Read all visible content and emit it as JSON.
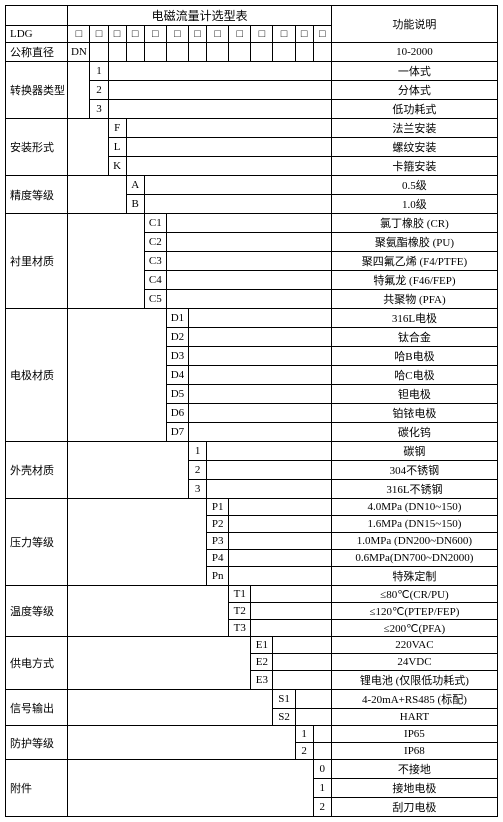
{
  "title": "电磁流量计选型表",
  "func_header": "功能说明",
  "rows": [
    {
      "label": "LDG",
      "code_col": 0,
      "code": "□",
      "desc": ""
    },
    {
      "label": "公称直径",
      "code_col": 1,
      "code": "DN",
      "desc": "10-2000"
    },
    {
      "label": "转换器类型",
      "rowspan": 3,
      "codes": [
        {
          "col": 2,
          "code": "1",
          "desc": "一体式"
        },
        {
          "col": 2,
          "code": "2",
          "desc": "分体式"
        },
        {
          "col": 2,
          "code": "3",
          "desc": "低功耗式"
        }
      ]
    },
    {
      "label": "安装形式",
      "rowspan": 3,
      "codes": [
        {
          "col": 3,
          "code": "F",
          "desc": "法兰安装"
        },
        {
          "col": 3,
          "code": "L",
          "desc": "螺纹安装"
        },
        {
          "col": 3,
          "code": "K",
          "desc": "卡箍安装"
        }
      ]
    },
    {
      "label": "精度等级",
      "rowspan": 2,
      "codes": [
        {
          "col": 4,
          "code": "A",
          "desc": "0.5级"
        },
        {
          "col": 4,
          "code": "B",
          "desc": "1.0级"
        }
      ]
    },
    {
      "label": "衬里材质",
      "rowspan": 5,
      "codes": [
        {
          "col": 5,
          "code": "C1",
          "desc": "氯丁橡胶 (CR)"
        },
        {
          "col": 5,
          "code": "C2",
          "desc": "聚氨酯橡胶 (PU)"
        },
        {
          "col": 5,
          "code": "C3",
          "desc": "聚四氟乙烯 (F4/PTFE)"
        },
        {
          "col": 5,
          "code": "C4",
          "desc": "特氟龙 (F46/FEP)"
        },
        {
          "col": 5,
          "code": "C5",
          "desc": "共聚物 (PFA)"
        }
      ]
    },
    {
      "label": "电极材质",
      "rowspan": 7,
      "codes": [
        {
          "col": 6,
          "code": "D1",
          "desc": "316L电极"
        },
        {
          "col": 6,
          "code": "D2",
          "desc": "钛合金"
        },
        {
          "col": 6,
          "code": "D3",
          "desc": "哈B电极"
        },
        {
          "col": 6,
          "code": "D4",
          "desc": "哈C电极"
        },
        {
          "col": 6,
          "code": "D5",
          "desc": "钽电极"
        },
        {
          "col": 6,
          "code": "D6",
          "desc": "铂铱电极"
        },
        {
          "col": 6,
          "code": "D7",
          "desc": "碳化钨"
        }
      ]
    },
    {
      "label": "外壳材质",
      "rowspan": 3,
      "codes": [
        {
          "col": 7,
          "code": "1",
          "desc": "碳钢"
        },
        {
          "col": 7,
          "code": "2",
          "desc": "304不锈钢"
        },
        {
          "col": 7,
          "code": "3",
          "desc": "316L不锈钢"
        }
      ]
    },
    {
      "label": "压力等级",
      "rowspan": 5,
      "codes": [
        {
          "col": 8,
          "code": "P1",
          "desc": "4.0MPa (DN10~150)"
        },
        {
          "col": 8,
          "code": "P2",
          "desc": "1.6MPa (DN15~150)"
        },
        {
          "col": 8,
          "code": "P3",
          "desc": "1.0MPa (DN200~DN600)"
        },
        {
          "col": 8,
          "code": "P4",
          "desc": "0.6MPa(DN700~DN2000)"
        },
        {
          "col": 8,
          "code": "Pn",
          "desc": "特殊定制"
        }
      ]
    },
    {
      "label": "温度等级",
      "rowspan": 3,
      "codes": [
        {
          "col": 9,
          "code": "T1",
          "desc": "≤80℃(CR/PU)"
        },
        {
          "col": 9,
          "code": "T2",
          "desc": "≤120℃(PTEP/FEP)"
        },
        {
          "col": 9,
          "code": "T3",
          "desc": "≤200℃(PFA)"
        }
      ]
    },
    {
      "label": "供电方式",
      "rowspan": 3,
      "codes": [
        {
          "col": 10,
          "code": "E1",
          "desc": "220VAC"
        },
        {
          "col": 10,
          "code": "E2",
          "desc": "24VDC"
        },
        {
          "col": 10,
          "code": "E3",
          "desc": "锂电池 (仅限低功耗式)"
        }
      ]
    },
    {
      "label": "信号输出",
      "rowspan": 2,
      "codes": [
        {
          "col": 11,
          "code": "S1",
          "desc": "4-20mA+RS485 (标配)"
        },
        {
          "col": 11,
          "code": "S2",
          "desc": "HART"
        }
      ]
    },
    {
      "label": "防护等级",
      "rowspan": 2,
      "codes": [
        {
          "col": 12,
          "code": "1",
          "desc": "IP65"
        },
        {
          "col": 12,
          "code": "2",
          "desc": "IP68"
        }
      ]
    },
    {
      "label": "附件",
      "rowspan": 3,
      "codes": [
        {
          "col": 13,
          "code": "0",
          "desc": "不接地"
        },
        {
          "col": 13,
          "code": "1",
          "desc": "接地电极"
        },
        {
          "col": 13,
          "code": "2",
          "desc": "刮刀电极"
        }
      ]
    }
  ],
  "code_header_boxes": "□/□/□/□/□/□/□/□/□/□/□/□/□"
}
